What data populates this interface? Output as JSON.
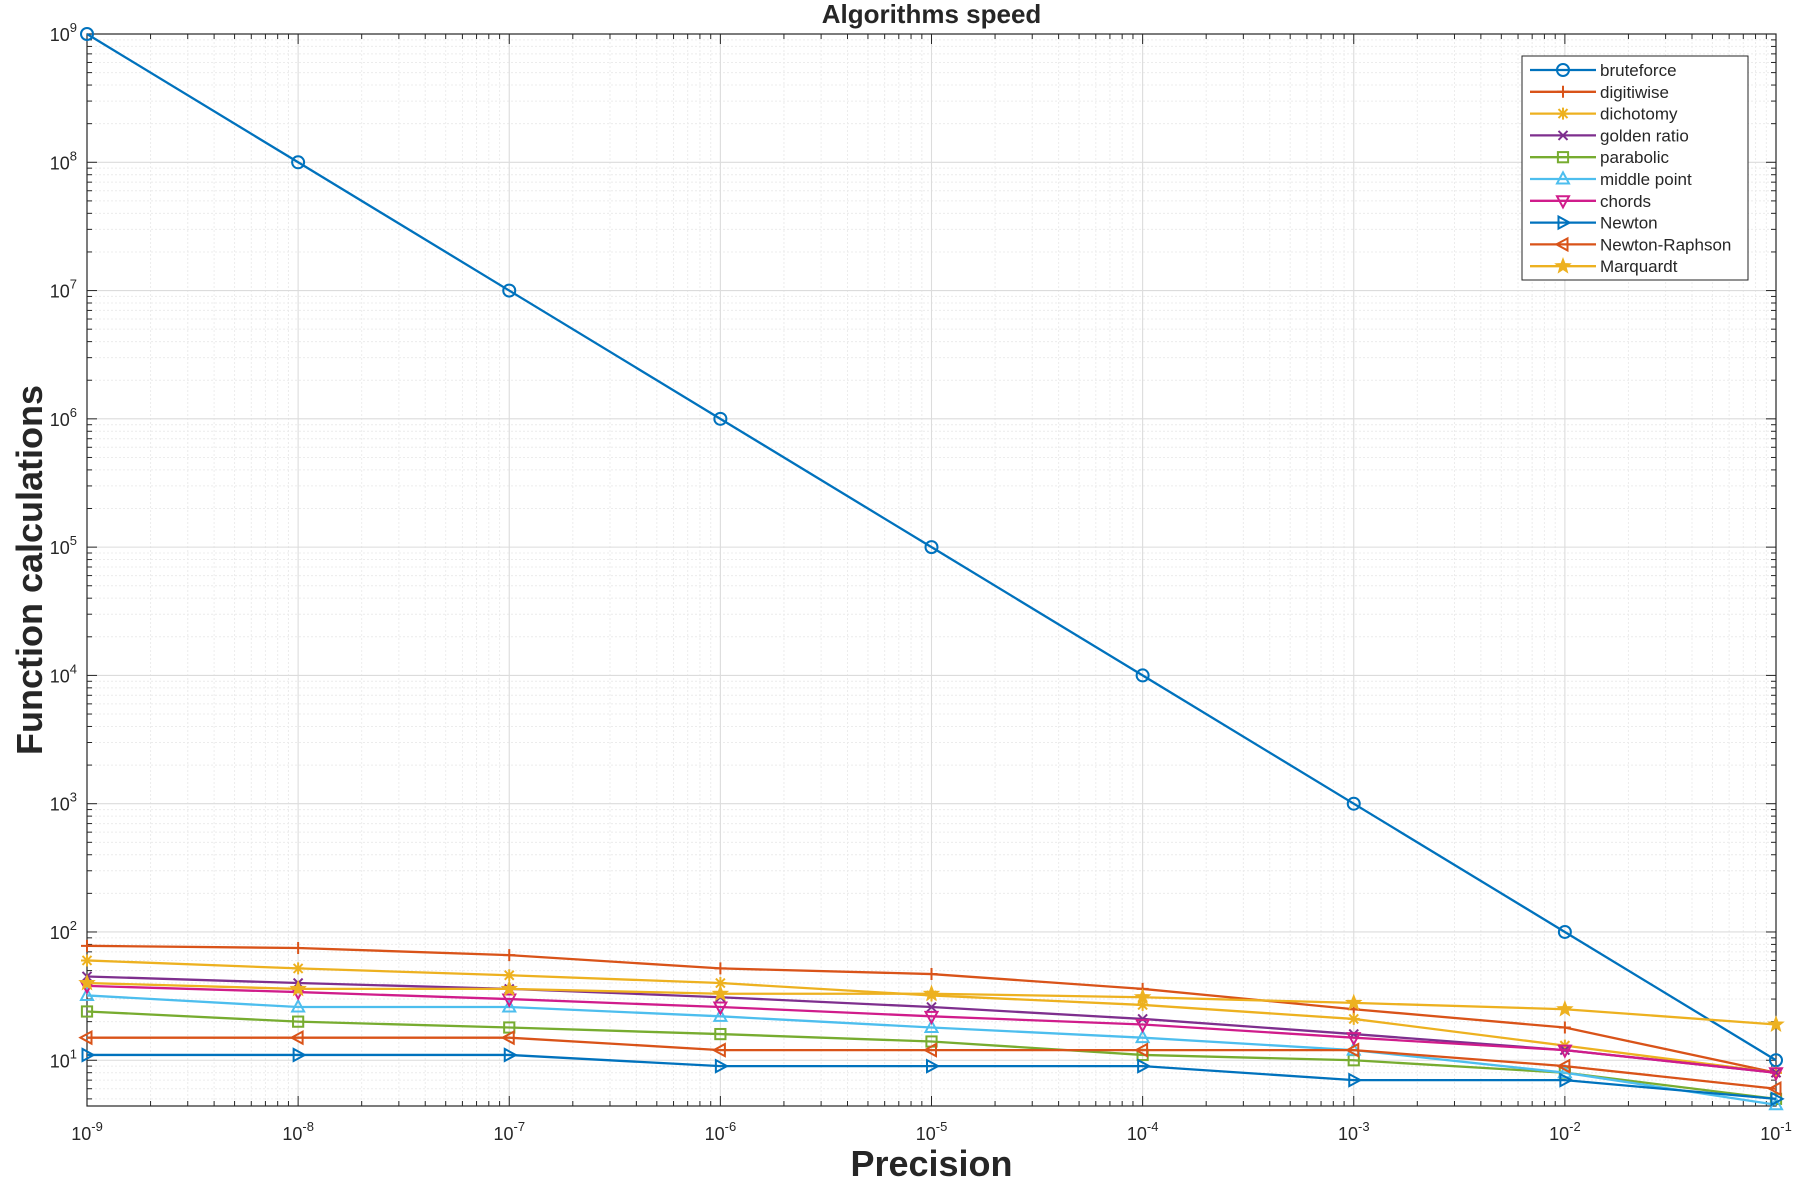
{
  "chart_data": {
    "type": "line",
    "title": "Algorithms speed",
    "xlabel": "Precision",
    "ylabel": "Function calculations",
    "xscale": "log",
    "yscale": "log",
    "xlim": [
      1e-09,
      0.1
    ],
    "ylim": [
      4.4,
      1000000000.0
    ],
    "grid": true,
    "minor_grid": true,
    "legend_position": "top-right",
    "x": [
      1e-09,
      1e-08,
      1e-07,
      1e-06,
      1e-05,
      0.0001,
      0.001,
      0.01,
      0.1
    ],
    "x_tick_exponents": [
      "-9",
      "-8",
      "-7",
      "-6",
      "-5",
      "-4",
      "-3",
      "-2",
      "-1"
    ],
    "y_ticks": [
      10,
      100,
      1000,
      10000,
      100000,
      1000000,
      10000000,
      100000000,
      1000000000
    ],
    "y_tick_exponents": [
      "1",
      "2",
      "3",
      "4",
      "5",
      "6",
      "7",
      "8",
      "9"
    ],
    "tick_base": "10",
    "series": [
      {
        "name": "bruteforce",
        "color": "#0072BD",
        "marker": "circle",
        "values": [
          1000000000,
          100000000,
          10000000,
          1000000,
          100000,
          10000,
          1000,
          100,
          10
        ]
      },
      {
        "name": "digitiwise",
        "color": "#D95319",
        "marker": "plus",
        "values": [
          78,
          75,
          66,
          52,
          47,
          36,
          25,
          18,
          8
        ]
      },
      {
        "name": "dichotomy",
        "color": "#EDB120",
        "marker": "asterisk",
        "values": [
          60,
          52,
          46,
          40,
          32,
          27,
          21,
          13,
          8
        ]
      },
      {
        "name": "golden ratio",
        "color": "#7E2F8E",
        "marker": "cross",
        "values": [
          45,
          40,
          36,
          31,
          26,
          21,
          16,
          12,
          8
        ]
      },
      {
        "name": "parabolic",
        "color": "#77AC30",
        "marker": "square",
        "values": [
          24,
          20,
          18,
          16,
          14,
          11,
          10,
          8,
          5
        ]
      },
      {
        "name": "middle point",
        "color": "#4DBEEE",
        "marker": "triangle-up",
        "values": [
          32,
          26,
          26,
          22,
          18,
          15,
          12,
          8,
          4.5
        ]
      },
      {
        "name": "chords",
        "color": "#D01C8B",
        "marker": "triangle-down",
        "values": [
          38,
          34,
          30,
          26,
          22,
          19,
          15,
          12,
          8
        ]
      },
      {
        "name": "Newton",
        "color": "#0072BD",
        "marker": "triangle-right",
        "values": [
          11,
          11,
          11,
          9,
          9,
          9,
          7,
          7,
          5
        ]
      },
      {
        "name": "Newton-Raphson",
        "color": "#D95319",
        "marker": "triangle-left",
        "values": [
          15,
          15,
          15,
          12,
          12,
          12,
          12,
          9,
          6
        ]
      },
      {
        "name": "Marquardt",
        "color": "#EDB120",
        "marker": "pentagram",
        "values": [
          40,
          36,
          36,
          33,
          33,
          31,
          28,
          25,
          19
        ]
      }
    ]
  }
}
